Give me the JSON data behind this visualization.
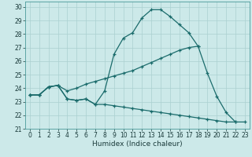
{
  "xlabel": "Humidex (Indice chaleur)",
  "x_values": [
    0,
    1,
    2,
    3,
    4,
    5,
    6,
    7,
    8,
    9,
    10,
    11,
    12,
    13,
    14,
    15,
    16,
    17,
    18,
    19,
    20,
    21,
    22,
    23
  ],
  "line1": [
    23.5,
    23.5,
    24.1,
    24.2,
    23.2,
    23.1,
    23.2,
    22.8,
    23.8,
    26.5,
    27.7,
    28.1,
    29.2,
    29.8,
    29.8,
    29.3,
    28.7,
    28.1,
    27.1,
    25.1,
    23.4,
    22.2,
    21.5,
    null
  ],
  "line2": [
    23.5,
    23.5,
    24.1,
    24.2,
    23.8,
    24.0,
    24.3,
    24.5,
    24.7,
    24.9,
    25.1,
    25.3,
    25.6,
    25.9,
    26.2,
    26.5,
    26.8,
    27.0,
    27.1,
    null,
    null,
    null,
    null,
    null
  ],
  "line3": [
    23.5,
    23.5,
    24.1,
    24.2,
    23.2,
    23.1,
    23.2,
    22.8,
    22.8,
    22.7,
    22.6,
    22.5,
    22.4,
    22.3,
    22.2,
    22.1,
    22.0,
    21.9,
    21.8,
    21.7,
    21.6,
    21.5,
    21.5,
    21.5
  ],
  "bg_color": "#cce9e9",
  "grid_color": "#aad0d0",
  "line_color": "#1a6b6b",
  "ylim": [
    21,
    30.4
  ],
  "xlim": [
    -0.5,
    23.5
  ],
  "yticks": [
    21,
    22,
    23,
    24,
    25,
    26,
    27,
    28,
    29,
    30
  ],
  "xticks": [
    0,
    1,
    2,
    3,
    4,
    5,
    6,
    7,
    8,
    9,
    10,
    11,
    12,
    13,
    14,
    15,
    16,
    17,
    18,
    19,
    20,
    21,
    22,
    23
  ]
}
